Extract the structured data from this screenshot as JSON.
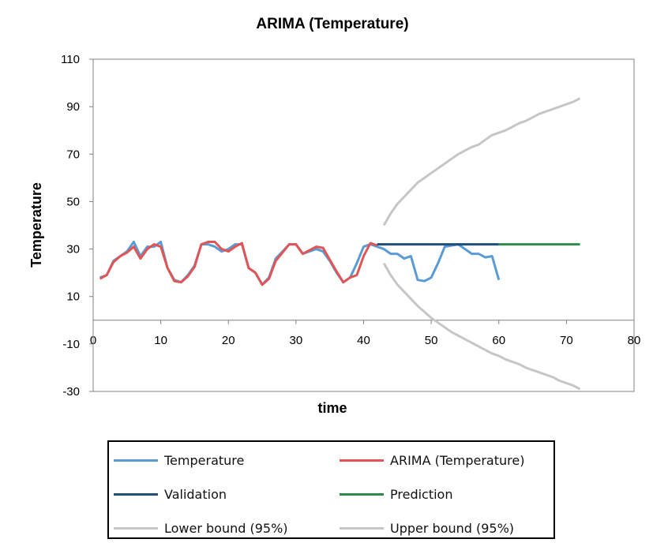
{
  "chart_data": {
    "type": "line",
    "title": "ARIMA (Temperature)",
    "xlabel": "time",
    "ylabel": "Temperature",
    "xlim": [
      0,
      80
    ],
    "ylim": [
      -30,
      110
    ],
    "xticks": [
      0,
      10,
      20,
      30,
      40,
      50,
      60,
      70,
      80
    ],
    "yticks": [
      -30,
      -10,
      10,
      30,
      50,
      70,
      90,
      110
    ],
    "grid": false,
    "legend_position": "bottom",
    "series": [
      {
        "name": "Temperature",
        "color": "#5B9BD5",
        "x": [
          1,
          2,
          3,
          4,
          5,
          6,
          7,
          8,
          9,
          10,
          11,
          12,
          13,
          14,
          15,
          16,
          17,
          18,
          19,
          20,
          21,
          22,
          23,
          24,
          25,
          26,
          27,
          28,
          29,
          30,
          31,
          32,
          33,
          34,
          35,
          36,
          37,
          38,
          39,
          40,
          41,
          42,
          43,
          44,
          45,
          46,
          47,
          48,
          49,
          50,
          51,
          52,
          53,
          54,
          55,
          56,
          57,
          58,
          59,
          60
        ],
        "y": [
          18,
          19,
          25,
          27,
          29,
          33,
          27,
          31,
          31,
          33,
          22,
          17,
          16,
          19,
          23,
          32,
          32,
          31,
          29,
          30,
          32,
          32,
          22,
          20,
          15,
          18,
          26,
          29,
          32,
          32,
          28,
          29,
          30,
          29,
          25,
          20,
          16,
          18,
          24,
          31,
          32,
          31,
          30,
          28,
          28,
          26,
          27,
          17,
          16.5,
          18,
          24,
          31,
          31.5,
          32,
          30,
          28,
          28,
          26.5,
          27,
          17
        ]
      },
      {
        "name": "ARIMA (Temperature)",
        "color": "#E05555",
        "x": [
          1,
          2,
          3,
          4,
          5,
          6,
          7,
          8,
          9,
          10,
          11,
          12,
          13,
          14,
          15,
          16,
          17,
          18,
          19,
          20,
          21,
          22,
          23,
          24,
          25,
          26,
          27,
          28,
          29,
          30,
          31,
          32,
          33,
          34,
          35,
          36,
          37,
          38,
          39,
          40,
          41,
          42
        ],
        "y": [
          17.5,
          19,
          24.5,
          27,
          28.5,
          31,
          26,
          30,
          32,
          31,
          22,
          16.5,
          16,
          18.5,
          22.5,
          32,
          33,
          33,
          30,
          29,
          31,
          32.5,
          22,
          20,
          15,
          17.5,
          25,
          28.5,
          32,
          32,
          28,
          29.5,
          31,
          30.5,
          25.5,
          20.5,
          16,
          18,
          19,
          27,
          32.5,
          31.5
        ]
      },
      {
        "name": "Validation",
        "color": "#1F4E79",
        "x": [
          42,
          60
        ],
        "y": [
          32,
          32
        ]
      },
      {
        "name": "Prediction",
        "color": "#2E8B4E",
        "x": [
          60,
          72
        ],
        "y": [
          32,
          32
        ]
      },
      {
        "name": "Lower bound (95%)",
        "color": "#C6C6C6",
        "x": [
          43,
          44,
          45,
          46,
          47,
          48,
          49,
          50,
          51,
          52,
          53,
          54,
          55,
          56,
          57,
          58,
          59,
          60,
          61,
          62,
          63,
          64,
          65,
          66,
          67,
          68,
          69,
          70,
          71,
          72
        ],
        "y": [
          24,
          19,
          15,
          12,
          9,
          6,
          3.5,
          1,
          -1,
          -3,
          -5,
          -6.5,
          -8,
          -9.5,
          -11,
          -12.5,
          -14,
          -15,
          -16.5,
          -17.5,
          -18.5,
          -20,
          -21,
          -22,
          -23,
          -24,
          -25.5,
          -26.5,
          -27.5,
          -29
        ]
      },
      {
        "name": "Upper bound (95%)",
        "color": "#C6C6C6",
        "x": [
          43,
          44,
          45,
          46,
          47,
          48,
          49,
          50,
          51,
          52,
          53,
          54,
          55,
          56,
          57,
          58,
          59,
          60,
          61,
          62,
          63,
          64,
          65,
          66,
          67,
          68,
          69,
          70,
          71,
          72
        ],
        "y": [
          40,
          45,
          49,
          52,
          55,
          58,
          60,
          62,
          64,
          66,
          68,
          70,
          71.5,
          73,
          74,
          76,
          78,
          79,
          80,
          81.5,
          83,
          84,
          85.5,
          87,
          88,
          89,
          90,
          91,
          92,
          93.5
        ]
      }
    ]
  }
}
